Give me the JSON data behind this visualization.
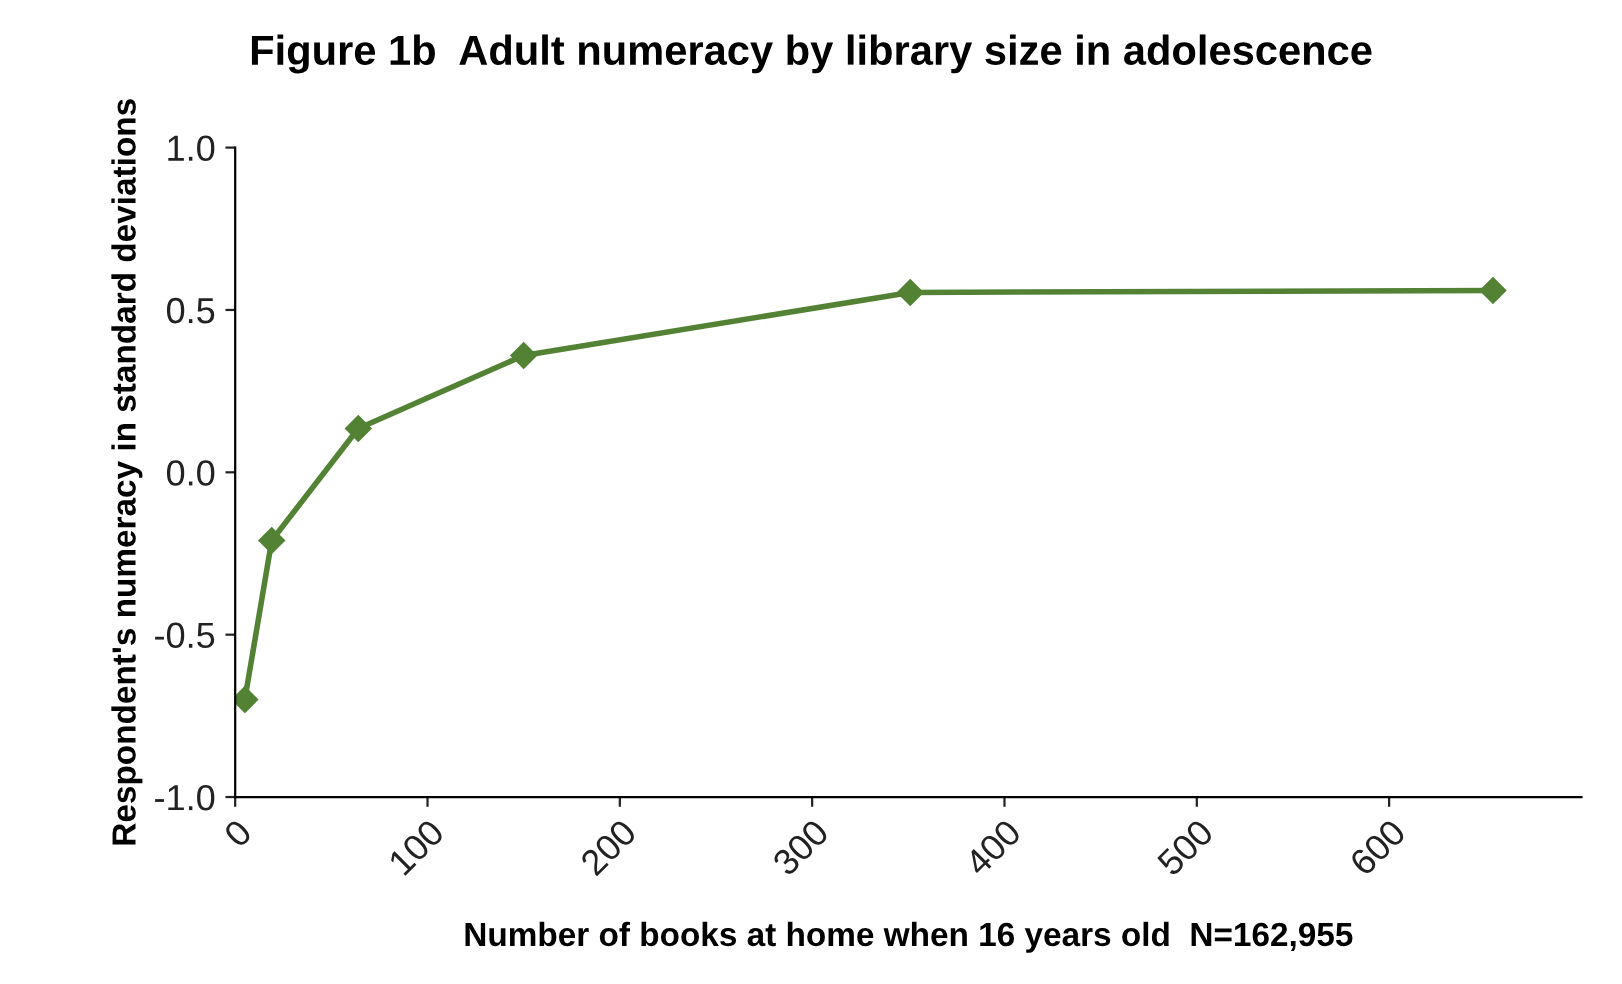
{
  "chart_data": {
    "type": "line",
    "title": "Figure 1b  Adult numeracy by library size in adolescence",
    "xlabel": "Number of books at home when 16 years old  N=162,955",
    "ylabel": "Respondent's numeracy in standard deviations",
    "x": [
      5,
      19,
      64,
      150,
      351,
      654
    ],
    "series": [
      {
        "color": "#548235",
        "values": [
          -0.7,
          -0.21,
          0.135,
          0.36,
          0.554,
          0.56
        ]
      }
    ],
    "xlim": [
      0,
      700
    ],
    "xticks": [
      0,
      100,
      200,
      300,
      400,
      500,
      600
    ],
    "ylim": [
      -1.0,
      1.0
    ],
    "yticks": [
      {
        "value": -1.0,
        "label": "-1.0"
      },
      {
        "value": -0.5,
        "label": "-0.5"
      },
      {
        "value": 0.0,
        "label": "0.0"
      },
      {
        "value": 0.5,
        "label": "0.5"
      },
      {
        "value": 1.0,
        "label": "1.0"
      }
    ],
    "marker": "diamond",
    "line_style": "solid",
    "grid": false,
    "legend": false
  }
}
